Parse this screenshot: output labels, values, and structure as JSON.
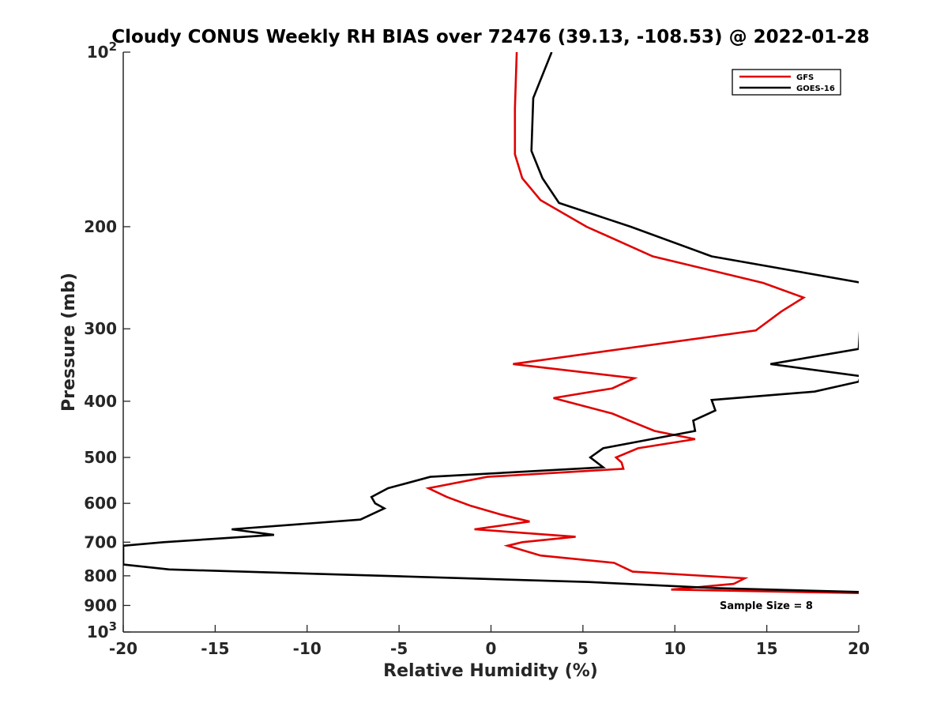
{
  "chart_data": {
    "type": "line",
    "title": "Cloudy CONUS Weekly RH BIAS over 72476 (39.13, -108.53) @ 2022-01-28",
    "xlabel": "Relative Humidity (%)",
    "ylabel": "Pressure (mb)",
    "xlim": [
      -20,
      20
    ],
    "ylim": [
      100,
      1000
    ],
    "y_scale": "log",
    "y_reversed": true,
    "x_ticks": [
      "-20",
      "-15",
      "-10",
      "-5",
      "0",
      "5",
      "10",
      "15",
      "20"
    ],
    "y_ticks": [
      {
        "value": 100,
        "base": "10",
        "exp": "2"
      },
      {
        "value": 200,
        "label": "200"
      },
      {
        "value": 300,
        "label": "300"
      },
      {
        "value": 400,
        "label": "400"
      },
      {
        "value": 500,
        "label": "500"
      },
      {
        "value": 600,
        "label": "600"
      },
      {
        "value": 700,
        "label": "700"
      },
      {
        "value": 800,
        "label": "800"
      },
      {
        "value": 900,
        "label": "900"
      },
      {
        "value": 1000,
        "base": "10",
        "exp": "3"
      }
    ],
    "legend_position": "top-right",
    "grid": false,
    "annotation": "Sample Size = 8",
    "series": [
      {
        "name": "GFS",
        "color": "#e00000",
        "points": [
          [
            1.4,
            100
          ],
          [
            1.3,
            125
          ],
          [
            1.3,
            150
          ],
          [
            1.7,
            165
          ],
          [
            2.7,
            180
          ],
          [
            5.2,
            200
          ],
          [
            8.8,
            225
          ],
          [
            14.8,
            250
          ],
          [
            17.0,
            265
          ],
          [
            15.8,
            280
          ],
          [
            14.4,
            302
          ],
          [
            1.2,
            345
          ],
          [
            7.8,
            365
          ],
          [
            6.6,
            380
          ],
          [
            3.4,
            395
          ],
          [
            6.6,
            420
          ],
          [
            7.6,
            433
          ],
          [
            8.9,
            450
          ],
          [
            11.1,
            465
          ],
          [
            8.0,
            482
          ],
          [
            6.8,
            500
          ],
          [
            7.1,
            510
          ],
          [
            7.2,
            523
          ],
          [
            -0.2,
            540
          ],
          [
            -3.4,
            565
          ],
          [
            -2.4,
            585
          ],
          [
            -1.1,
            606
          ],
          [
            0.6,
            628
          ],
          [
            2.1,
            645
          ],
          [
            -0.9,
            665
          ],
          [
            4.6,
            685
          ],
          [
            1.7,
            700
          ],
          [
            0.9,
            710
          ],
          [
            2.7,
            738
          ],
          [
            6.7,
            760
          ],
          [
            7.7,
            787
          ],
          [
            13.8,
            808
          ],
          [
            13.2,
            826
          ],
          [
            9.8,
            845
          ],
          [
            20.1,
            857
          ]
        ]
      },
      {
        "name": "GOES-16",
        "color": "#000000",
        "points": [
          [
            3.3,
            100
          ],
          [
            2.3,
            120
          ],
          [
            2.2,
            148
          ],
          [
            2.8,
            165
          ],
          [
            3.7,
            182
          ],
          [
            7.6,
            200
          ],
          [
            12.0,
            225
          ],
          [
            20.2,
            250
          ],
          [
            20.0,
            325
          ],
          [
            15.2,
            345
          ],
          [
            20.1,
            362
          ],
          [
            20.0,
            370
          ],
          [
            17.6,
            385
          ],
          [
            12.0,
            398
          ],
          [
            12.2,
            415
          ],
          [
            11.0,
            432
          ],
          [
            11.1,
            450
          ],
          [
            6.1,
            482
          ],
          [
            5.4,
            500
          ],
          [
            6.1,
            520
          ],
          [
            -3.3,
            540
          ],
          [
            -5.6,
            565
          ],
          [
            -6.5,
            585
          ],
          [
            -6.3,
            600
          ],
          [
            -5.8,
            612
          ],
          [
            -7.1,
            640
          ],
          [
            -14.1,
            665
          ],
          [
            -11.8,
            680
          ],
          [
            -17.8,
            700
          ],
          [
            -20.0,
            710
          ],
          [
            -20.0,
            765
          ],
          [
            -17.5,
            780
          ],
          [
            -8.7,
            795
          ],
          [
            5.3,
            820
          ],
          [
            12.2,
            840
          ],
          [
            20.0,
            853
          ]
        ]
      }
    ]
  }
}
